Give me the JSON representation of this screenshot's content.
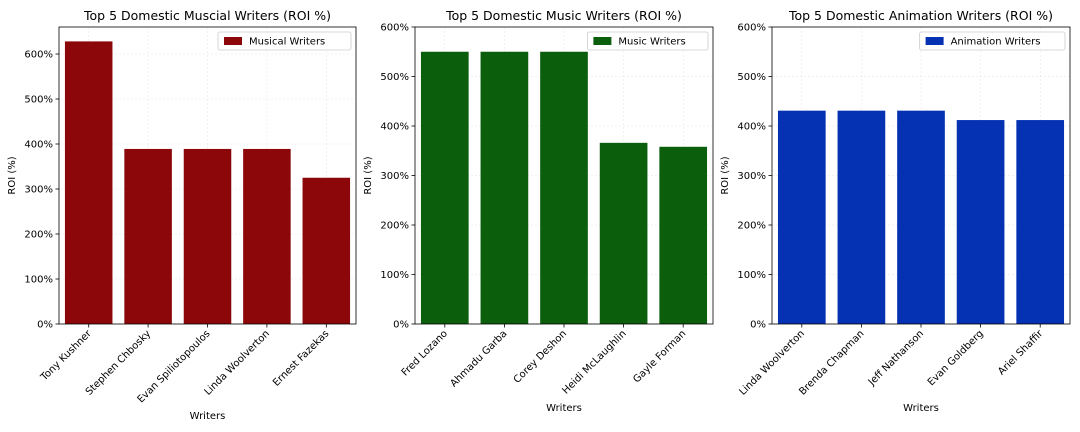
{
  "chart_data": [
    {
      "type": "bar",
      "title": "Top 5 Domestic Muscial Writers (ROI %)",
      "xlabel": "Writers",
      "ylabel": "ROI (%)",
      "categories": [
        "Tony Kushner",
        "Stephen Chbosky",
        "Evan Spiliotopoulos",
        "Linda Woolverton",
        "Ernest Fazekas"
      ],
      "series": [
        {
          "name": "Musical Writers",
          "values": [
            628,
            389,
            389,
            389,
            325
          ]
        }
      ],
      "ylim": [
        0,
        660
      ],
      "yticks": [
        0,
        100,
        200,
        300,
        400,
        500,
        600
      ],
      "ytick_labels": [
        "0%",
        "100%",
        "200%",
        "300%",
        "400%",
        "500%",
        "600%"
      ],
      "color": "#8b0709",
      "grid": true,
      "legend_position": "top-right"
    },
    {
      "type": "bar",
      "title": "Top 5 Domestic Music Writers (ROI %)",
      "xlabel": "Writers",
      "ylabel": "ROI (%)",
      "categories": [
        "Fred Lozano",
        "Ahmadu Garba",
        "Corey Deshon",
        "Heidi McLaughlin",
        "Gayle Forman"
      ],
      "series": [
        {
          "name": "Music Writers",
          "values": [
            550,
            550,
            550,
            366,
            358
          ]
        }
      ],
      "ylim": [
        0,
        600
      ],
      "yticks": [
        0,
        100,
        200,
        300,
        400,
        500,
        600
      ],
      "ytick_labels": [
        "0%",
        "100%",
        "200%",
        "300%",
        "400%",
        "500%",
        "600%"
      ],
      "color": "#0b5e0b",
      "grid": true,
      "legend_position": "top-right"
    },
    {
      "type": "bar",
      "title": "Top 5 Domestic Animation Writers (ROI %)",
      "xlabel": "Writers",
      "ylabel": "ROI (%)",
      "categories": [
        "Linda Woolverton",
        "Brenda Chapman",
        "Jeff Nathanson",
        "Evan Goldberg",
        "Ariel Shaffir"
      ],
      "series": [
        {
          "name": "Animation Writers",
          "values": [
            431,
            431,
            431,
            412,
            412
          ]
        }
      ],
      "ylim": [
        0,
        600
      ],
      "yticks": [
        0,
        100,
        200,
        300,
        400,
        500,
        600
      ],
      "ytick_labels": [
        "0%",
        "100%",
        "200%",
        "300%",
        "400%",
        "500%",
        "600%"
      ],
      "color": "#0531b3",
      "grid": true,
      "legend_position": "top-right"
    }
  ]
}
